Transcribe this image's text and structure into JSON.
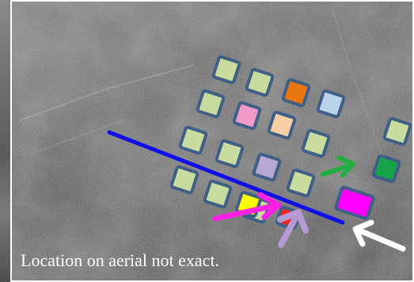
{
  "caption": {
    "text": "Location on aerial not exact."
  },
  "colors": {
    "square_border": "#3f5f86",
    "light_green": "#c8dca0",
    "orange": "#e8750e",
    "light_blue": "#bcd1ea",
    "pink": "#f39ac9",
    "peach": "#f8cfa5",
    "lavender": "#b6a8d2",
    "green": "#16a34a",
    "magenta": "#ff00ff",
    "yellow": "#ffff00",
    "red": "#ff2020",
    "blue_line": "#1010e8",
    "green_arrow": "#1fae3f",
    "magenta_arrow": "#ff22e6",
    "lilac_arrow": "#b49ad2",
    "white_arrow": "#ffffff"
  },
  "markers": [
    {
      "name": "marker-light-green",
      "color": "light_green"
    },
    {
      "name": "marker-light-green",
      "color": "light_green"
    },
    {
      "name": "marker-orange",
      "color": "orange"
    },
    {
      "name": "marker-light-blue",
      "color": "light_blue"
    },
    {
      "name": "marker-light-green",
      "color": "light_green"
    },
    {
      "name": "marker-pink",
      "color": "pink"
    },
    {
      "name": "marker-peach",
      "color": "peach"
    },
    {
      "name": "marker-light-green",
      "color": "light_green"
    },
    {
      "name": "marker-light-green",
      "color": "light_green"
    },
    {
      "name": "marker-light-green",
      "color": "light_green"
    },
    {
      "name": "marker-lavender",
      "color": "lavender"
    },
    {
      "name": "marker-light-green",
      "color": "light_green"
    },
    {
      "name": "marker-light-green",
      "color": "light_green"
    },
    {
      "name": "marker-light-green",
      "color": "light_green"
    },
    {
      "name": "marker-light-green",
      "color": "light_green"
    },
    {
      "name": "marker-green",
      "color": "green"
    },
    {
      "name": "marker-light-green",
      "color": "light_green"
    },
    {
      "name": "marker-magenta",
      "color": "magenta"
    },
    {
      "name": "marker-yellow",
      "color": "yellow"
    },
    {
      "name": "marker-red",
      "color": "red"
    }
  ]
}
